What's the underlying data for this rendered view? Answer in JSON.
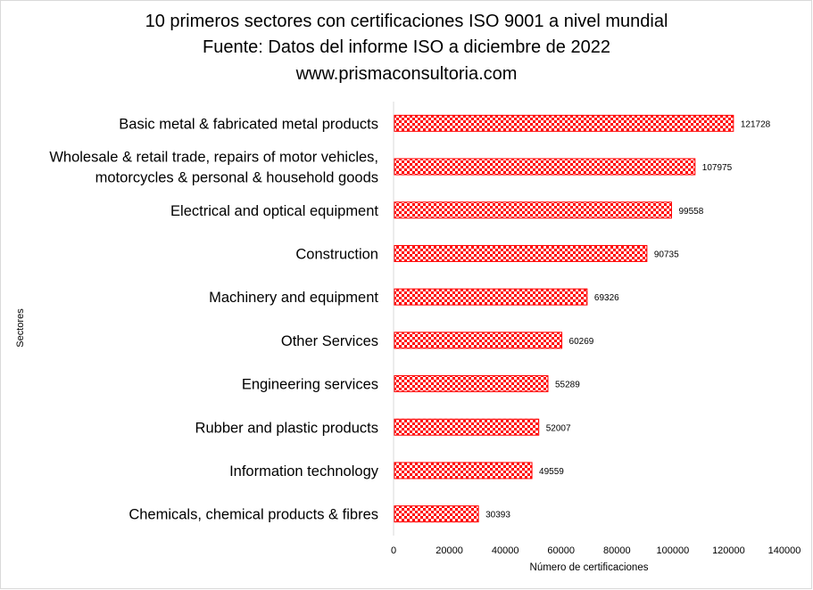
{
  "title_lines": [
    "10 primeros sectores con certificaciones ISO 9001 a nivel mundial",
    "Fuente: Datos del informe ISO  a diciembre de 2022",
    "www.prismaconsultoria.com"
  ],
  "colors": {
    "bar": "#ff0000",
    "bar_pattern_light": "#ffffff",
    "frame": "#d9d9d9",
    "axis": "#d9d9d9"
  },
  "chart_data": {
    "type": "bar",
    "orientation": "horizontal",
    "title": "10 primeros sectores con certificaciones ISO 9001 a nivel mundial",
    "subtitle": "Fuente: Datos del informe ISO  a diciembre de 2022",
    "caption": "www.prismaconsultoria.com",
    "xlabel": "Número de certificaciones",
    "ylabel": "Sectores",
    "xlim": [
      0,
      140000
    ],
    "xticks": [
      "0",
      "20000",
      "40000",
      "60000",
      "80000",
      "100000",
      "120000",
      "140000"
    ],
    "grid": false,
    "categories": [
      [
        "Basic metal & fabricated metal products"
      ],
      [
        "Wholesale & retail trade, repairs of motor vehicles,",
        "motorcycles & personal & household goods"
      ],
      [
        "Electrical and optical equipment"
      ],
      [
        "Construction"
      ],
      [
        "Machinery and equipment"
      ],
      [
        "Other Services"
      ],
      [
        "Engineering services"
      ],
      [
        "Rubber and plastic products"
      ],
      [
        "Information technology"
      ],
      [
        "Chemicals, chemical products & fibres"
      ]
    ],
    "values": [
      121728,
      107975,
      99558,
      90735,
      69326,
      60269,
      55289,
      52007,
      49559,
      30393
    ],
    "data_labels": [
      "121728",
      "107975",
      "99558",
      "90735",
      "69326",
      "60269",
      "55289",
      "52007",
      "49559",
      "30393"
    ]
  }
}
